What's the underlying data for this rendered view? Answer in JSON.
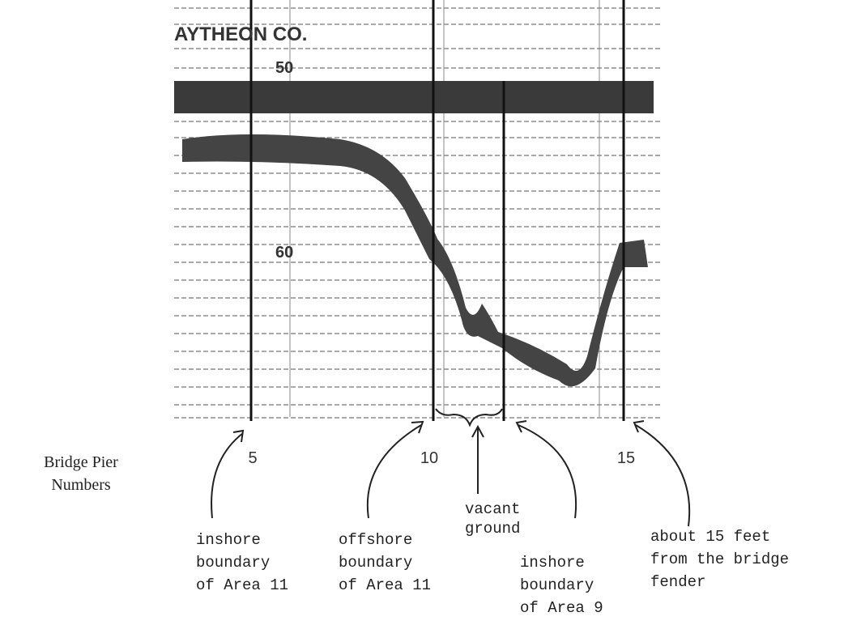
{
  "record": {
    "header": "AYTHEON CO.",
    "scale_labels": [
      "50",
      "60"
    ]
  },
  "pier_label": [
    "Bridge Pier",
    "Numbers"
  ],
  "pier_numbers": [
    "5",
    "10",
    "15"
  ],
  "annotations": {
    "vacant": [
      "vacant",
      "ground"
    ],
    "inshore_11": [
      "inshore",
      "boundary",
      "of Area 11"
    ],
    "offshore_11": [
      "offshore",
      "boundary",
      "of Area 11"
    ],
    "inshore_9": [
      "inshore",
      "boundary",
      "of Area 9"
    ],
    "fender": [
      "about 15 feet",
      "from the bridge",
      "fender"
    ]
  }
}
